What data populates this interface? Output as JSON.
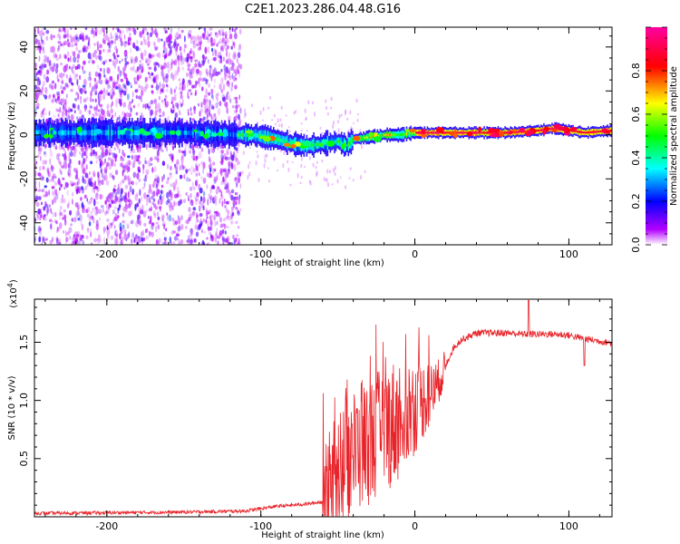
{
  "title": "C2E1.2023.286.04.48.G16",
  "chart_data": [
    {
      "type": "heatmap",
      "xlabel": "Height of straight line (km)",
      "ylabel": "Frequency (Hz)",
      "xlim": [
        -247,
        128
      ],
      "ylim": [
        -50,
        49
      ],
      "xticks": [
        -200,
        -100,
        0,
        100
      ],
      "yticks": [
        -40,
        -20,
        0,
        20,
        40
      ],
      "xtick_labels": [
        "-200",
        "-100",
        "0",
        "100"
      ],
      "ytick_labels": [
        "-40",
        "-20",
        "0",
        "20",
        "40"
      ],
      "colorbar": {
        "label": "Normalized spectral amplitude",
        "range": [
          0,
          1
        ],
        "ticks": [
          0.0,
          0.2,
          0.4,
          0.6,
          0.8
        ],
        "tick_labels": [
          "0.0",
          "0.2",
          "0.4",
          "0.6",
          "0.8"
        ],
        "colormap": [
          "#ffffff",
          "#b300ff",
          "#0000ff",
          "#00ffff",
          "#00ff00",
          "#ffff00",
          "#ff0000",
          "#ff00a0"
        ]
      },
      "ridge": {
        "x": [
          -247,
          -200,
          -150,
          -115,
          -105,
          -90,
          -80,
          -70,
          -60,
          -50,
          -45,
          -40,
          -30,
          -20,
          -10,
          0,
          20,
          40,
          60,
          80,
          90,
          100,
          110,
          128
        ],
        "y": [
          1,
          1,
          1,
          0,
          0,
          -2,
          -4,
          -5,
          -4,
          -3,
          -5,
          -2,
          -1,
          0,
          0,
          1,
          1,
          1,
          1,
          2,
          3,
          2,
          1,
          2
        ]
      }
    },
    {
      "type": "line",
      "xlabel": "Height of straight line (km)",
      "ylabel": "SNR (10 * v/v)",
      "y_multiplier": "(x10",
      "y_multiplier_exp": "4",
      "y_multiplier_close": ")",
      "xlim": [
        -247,
        128
      ],
      "ylim": [
        0,
        1.87
      ],
      "xticks": [
        -200,
        -100,
        0,
        100
      ],
      "yticks": [
        0.5,
        1.0,
        1.5
      ],
      "xtick_labels": [
        "-200",
        "-100",
        "0",
        "100"
      ],
      "ytick_labels": [
        "0.5",
        "1.0",
        "1.5"
      ],
      "line_color": "#e8242a",
      "series_envelope": {
        "x": [
          -247,
          -150,
          -110,
          -100,
          -90,
          -80,
          -70,
          -60,
          -55,
          -50,
          -45,
          -40,
          -35,
          -30,
          -25,
          -20,
          -15,
          -10,
          -5,
          0,
          5,
          10,
          15,
          20,
          25,
          30,
          40,
          50,
          60,
          70,
          80,
          90,
          100,
          110,
          120,
          128
        ],
        "y": [
          0.03,
          0.04,
          0.05,
          0.07,
          0.09,
          0.1,
          0.11,
          0.13,
          0.2,
          0.35,
          0.5,
          0.55,
          0.6,
          0.65,
          0.7,
          0.75,
          0.8,
          0.85,
          0.9,
          0.95,
          1.0,
          1.05,
          1.15,
          1.3,
          1.45,
          1.52,
          1.58,
          1.58,
          1.58,
          1.57,
          1.57,
          1.57,
          1.56,
          1.53,
          1.51,
          1.49
        ]
      },
      "spikes": [
        {
          "x": 74,
          "y": 1.86
        },
        {
          "x": 110,
          "y": 1.3
        }
      ]
    }
  ]
}
